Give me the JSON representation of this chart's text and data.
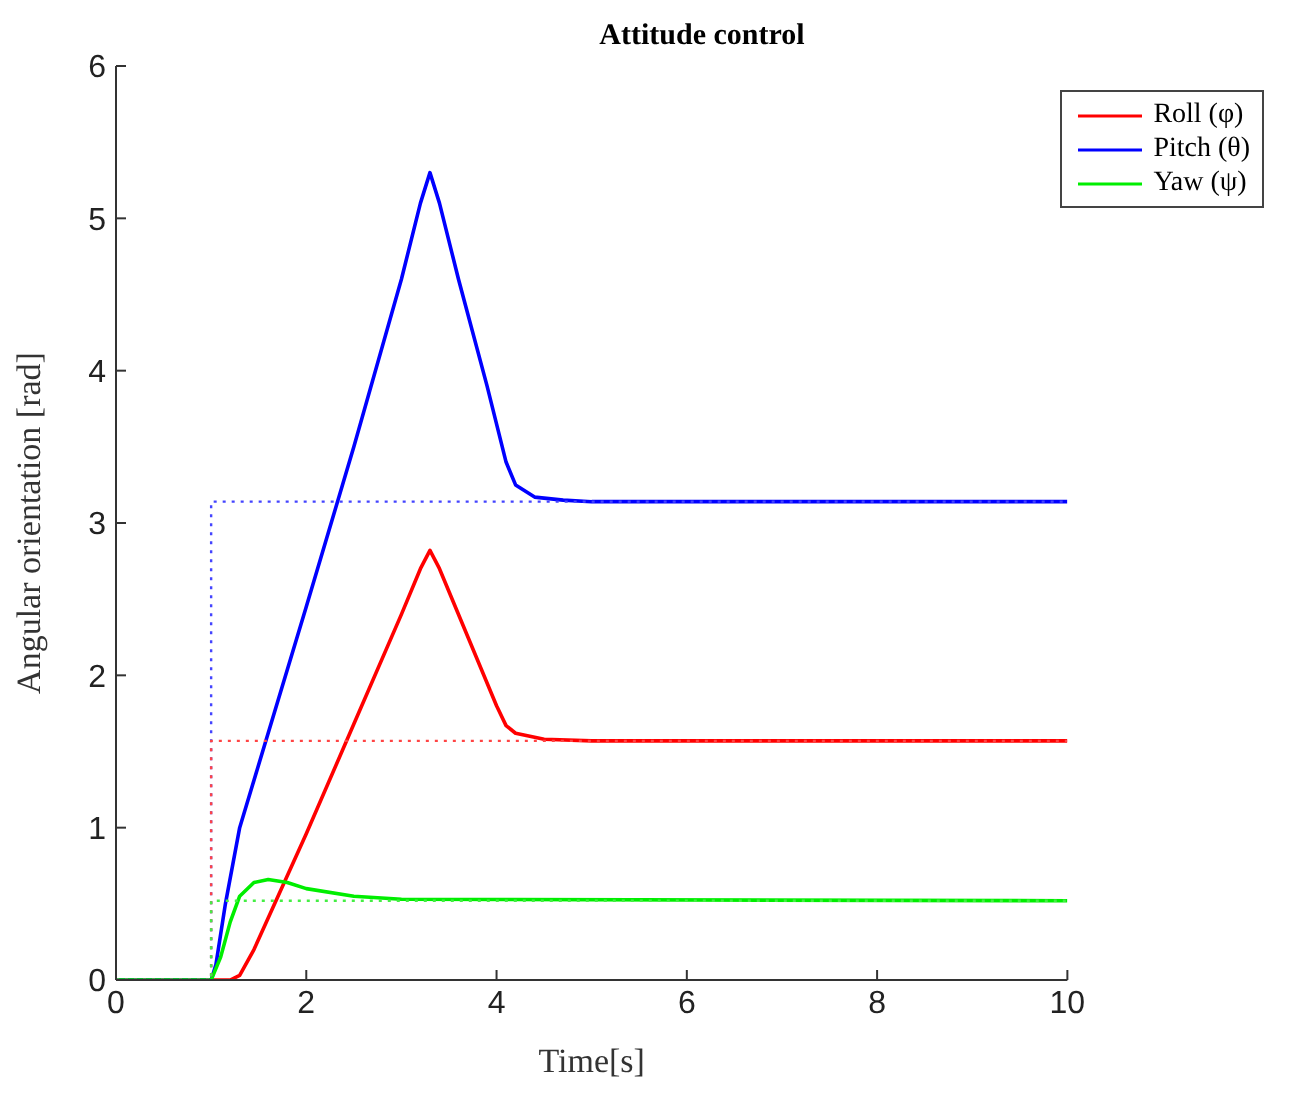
{
  "chart_data": {
    "type": "line",
    "title": "Attitude control",
    "xlabel": "Time[s]",
    "ylabel": "Angular orientation [rad]",
    "xlim": [
      0,
      10
    ],
    "xticks": [
      0,
      2,
      4,
      6,
      8,
      10
    ],
    "ylim": [
      0,
      6
    ],
    "yticks": [
      0,
      1,
      2,
      3,
      4,
      5,
      6
    ],
    "grid": false,
    "legend": "top right",
    "marker": "none",
    "series": [
      {
        "name": "Roll (φ)",
        "color": "#ff0000",
        "line_style": "solid",
        "x": [
          0,
          1.2,
          1.3,
          1.45,
          2,
          2.5,
          3,
          3.2,
          3.3,
          3.4,
          3.7,
          4,
          4.1,
          4.2,
          4.5,
          5,
          10
        ],
        "values": [
          0,
          0,
          0.03,
          0.2,
          0.96,
          1.68,
          2.4,
          2.7,
          2.82,
          2.7,
          2.25,
          1.8,
          1.67,
          1.62,
          1.58,
          1.57,
          1.57
        ]
      },
      {
        "name": "Pitch (θ)",
        "color": "#0000ff",
        "line_style": "solid",
        "x": [
          0,
          1,
          1.05,
          1.15,
          1.3,
          2,
          2.5,
          3,
          3.2,
          3.3,
          3.4,
          3.6,
          3.9,
          4.1,
          4.2,
          4.4,
          4.7,
          5,
          10
        ],
        "values": [
          0,
          0,
          0.1,
          0.5,
          1.0,
          2.45,
          3.5,
          4.6,
          5.1,
          5.3,
          5.1,
          4.6,
          3.9,
          3.4,
          3.25,
          3.17,
          3.15,
          3.14,
          3.14
        ]
      },
      {
        "name": "Yaw (ψ)",
        "color": "#00ee00",
        "line_style": "solid",
        "x": [
          0,
          1,
          1.1,
          1.2,
          1.3,
          1.45,
          1.6,
          1.8,
          2,
          2.5,
          3,
          10
        ],
        "values": [
          0,
          0,
          0.15,
          0.38,
          0.55,
          0.64,
          0.66,
          0.64,
          0.6,
          0.55,
          0.53,
          0.52
        ]
      },
      {
        "color": "#4444ff",
        "line_style": "dotted",
        "x": [
          0,
          1,
          1,
          10
        ],
        "values": [
          0,
          0,
          3.14,
          3.14
        ]
      },
      {
        "color": "#ff4444",
        "line_style": "dotted",
        "x": [
          0,
          1,
          1,
          10
        ],
        "values": [
          0,
          0,
          1.57,
          1.57
        ]
      },
      {
        "color": "#44ee44",
        "line_style": "dotted",
        "x": [
          0,
          1,
          1,
          10
        ],
        "values": [
          0,
          0,
          0.52,
          0.52
        ]
      }
    ]
  }
}
